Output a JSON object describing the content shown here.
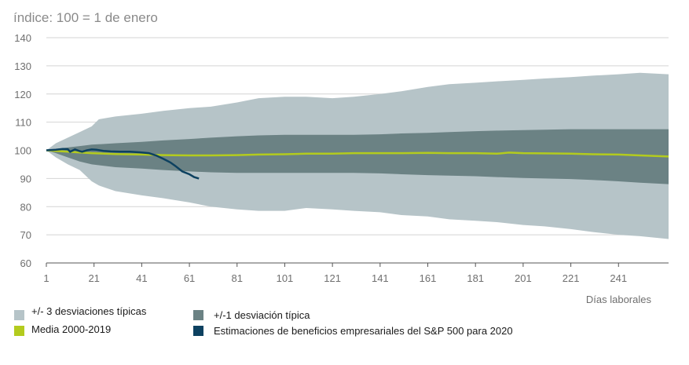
{
  "chart_data": {
    "type": "area",
    "title": "índice: 100 = 1 de enero",
    "xlabel": "Días laborales",
    "ylabel": "",
    "ylim": [
      60,
      140
    ],
    "xlim": [
      1,
      262
    ],
    "yticks": [
      60,
      70,
      80,
      90,
      100,
      110,
      120,
      130,
      140
    ],
    "xticks": [
      1,
      21,
      41,
      61,
      81,
      101,
      121,
      141,
      161,
      181,
      201,
      221,
      241
    ],
    "grid": "horizontal",
    "legend_position": "bottom",
    "colors": {
      "band3": "#b6c4c8",
      "band1": "#6b8284",
      "mean": "#b3cb1e",
      "actual": "#0d4160"
    },
    "series": [
      {
        "name": "+/- 3 desviaciones típicas",
        "kind": "band",
        "x": [
          1,
          5,
          10,
          15,
          20,
          23,
          30,
          41,
          50,
          61,
          70,
          81,
          90,
          101,
          110,
          121,
          130,
          141,
          150,
          161,
          170,
          181,
          190,
          201,
          210,
          221,
          230,
          241,
          250,
          262
        ],
        "upper": [
          100,
          102.5,
          104.5,
          106.5,
          108.5,
          111,
          112,
          113,
          114,
          115,
          115.5,
          117,
          118.5,
          119,
          119,
          118.5,
          119,
          120,
          121,
          122.5,
          123.5,
          124,
          124.5,
          125,
          125.5,
          126,
          126.5,
          127,
          127.5,
          127
        ],
        "lower": [
          100,
          97.5,
          95,
          93,
          89,
          87.5,
          85.5,
          84,
          83,
          81.5,
          80,
          79,
          78.5,
          78.5,
          79.5,
          79,
          78.5,
          78,
          77,
          76.5,
          75.5,
          75,
          74.5,
          73.5,
          73,
          72,
          71,
          70,
          69.5,
          68.5
        ]
      },
      {
        "name": "+/-1 desviación típica",
        "kind": "band",
        "x": [
          1,
          5,
          10,
          15,
          20,
          30,
          41,
          50,
          61,
          70,
          81,
          90,
          101,
          110,
          121,
          130,
          141,
          150,
          161,
          170,
          181,
          190,
          201,
          210,
          221,
          230,
          241,
          250,
          262
        ],
        "upper": [
          100,
          100.5,
          101,
          101.5,
          102,
          102.5,
          103,
          103.5,
          104,
          104.5,
          105,
          105.3,
          105.5,
          105.5,
          105.5,
          105.5,
          105.7,
          106,
          106.2,
          106.5,
          106.8,
          107,
          107.2,
          107.3,
          107.5,
          107.5,
          107.5,
          107.5,
          107.5
        ],
        "lower": [
          100,
          99,
          97.5,
          96,
          95,
          94,
          93.5,
          93,
          92.5,
          92.2,
          92,
          92,
          92,
          92,
          92,
          92,
          91.8,
          91.5,
          91.2,
          91,
          90.8,
          90.5,
          90.2,
          90,
          89.8,
          89.5,
          89,
          88.5,
          88
        ]
      },
      {
        "name": "Media 2000-2019",
        "kind": "line",
        "x": [
          1,
          10,
          20,
          30,
          41,
          50,
          61,
          70,
          81,
          90,
          101,
          110,
          121,
          130,
          141,
          150,
          161,
          170,
          181,
          190,
          195,
          201,
          210,
          221,
          230,
          241,
          250,
          262
        ],
        "values": [
          100,
          99.5,
          99,
          98.7,
          98.5,
          98.3,
          98.2,
          98.2,
          98.3,
          98.5,
          98.6,
          98.8,
          98.8,
          99,
          99,
          99,
          99.1,
          99,
          99,
          98.8,
          99.2,
          99,
          98.9,
          98.8,
          98.6,
          98.5,
          98.2,
          97.8
        ]
      },
      {
        "name": "Estimaciones de beneficios empresariales del S&P 500 para 2020",
        "kind": "line",
        "x": [
          1,
          5,
          8,
          10,
          11,
          13,
          15,
          16,
          18,
          20,
          22,
          25,
          28,
          32,
          36,
          40,
          44,
          47,
          50,
          53,
          55,
          58,
          61,
          63,
          65
        ],
        "values": [
          100,
          100.2,
          100.5,
          100.4,
          99.5,
          100.3,
          99.7,
          99.5,
          100,
          100.3,
          100.2,
          99.8,
          99.6,
          99.5,
          99.5,
          99.3,
          99,
          98.2,
          97,
          95.7,
          94.5,
          92.5,
          91.5,
          90.5,
          90
        ]
      }
    ]
  }
}
